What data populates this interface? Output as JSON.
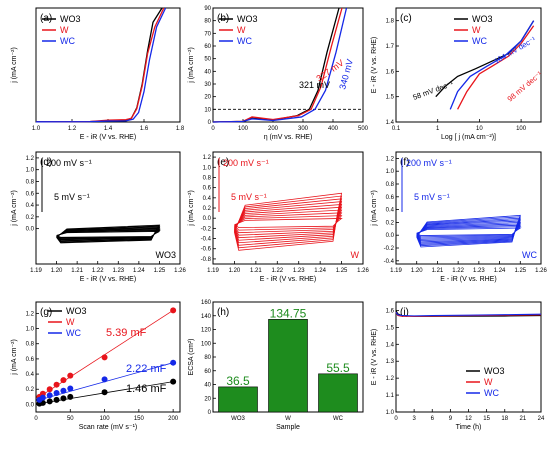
{
  "panels": {
    "a": {
      "tag": "(a)",
      "xlabel": "E - iR (V vs. RHE)",
      "ylabel": "j (mA cm⁻²)",
      "xticks": [
        "1.0",
        "1.2",
        "1.4",
        "1.6",
        "1.8"
      ],
      "yticks": []
    },
    "b": {
      "tag": "(b)",
      "xlabel": "η (mV vs. RHE)",
      "ylabel": "j (mA cm⁻²)",
      "xticks": [
        "0",
        "100",
        "200",
        "300",
        "400",
        "500"
      ],
      "yticks": [
        "0",
        "10",
        "20",
        "30",
        "40",
        "50",
        "60",
        "70",
        "80",
        "90"
      ],
      "annotations": [
        "321 mV",
        "327 mV",
        "340 mV"
      ]
    },
    "c": {
      "tag": "(c)",
      "xlabel": "Log [ j (mA cm⁻²)]",
      "ylabel": "E - iR (V vs. RHE)",
      "xticks": [
        "0.1",
        "1",
        "10",
        "100"
      ],
      "yticks": [
        "1.4",
        "1.5",
        "1.6",
        "1.7",
        "1.8"
      ],
      "annotations": [
        "58 mV dec⁻¹",
        "104 mV dec⁻¹",
        "98 mV dec⁻¹"
      ]
    },
    "d": {
      "tag": "(d)",
      "label": "WO3",
      "ylabel": "j (mA cm⁻²)",
      "xlabel": "E - iR (V vs. RHE)",
      "xticks": [
        "1.19",
        "1.20",
        "1.21",
        "1.22",
        "1.23",
        "1.24",
        "1.25",
        "1.26"
      ],
      "yticks": [
        "0.0",
        "0.2",
        "0.4",
        "0.6",
        "0.8",
        "1.0",
        "1.2"
      ],
      "note_top": "200 mV s⁻¹",
      "note_bottom": "5 mV s⁻¹"
    },
    "e": {
      "tag": "(e)",
      "label": "W",
      "xlabel": "E - iR (V vs. RHE)",
      "ylabel": "j (mA cm⁻²)",
      "xticks": [
        "1.19",
        "1.20",
        "1.21",
        "1.22",
        "1.23",
        "1.24",
        "1.25",
        "1.26"
      ],
      "yticks": [
        "-0.8",
        "-0.6",
        "-0.4",
        "-0.2",
        "0.0",
        "0.2",
        "0.4",
        "0.6",
        "0.8",
        "1.0",
        "1.2"
      ],
      "note_top": "200 mV s⁻¹",
      "note_bottom": "5 mV s⁻¹"
    },
    "f": {
      "tag": "(f)",
      "label": "WC",
      "xlabel": "E - iR (V vs. RHE)",
      "ylabel": "j (mA cm⁻²)",
      "xticks": [
        "1.19",
        "1.20",
        "1.21",
        "1.22",
        "1.23",
        "1.24",
        "1.25",
        "1.26"
      ],
      "yticks": [
        "-0.4",
        "-0.2",
        "0.0",
        "0.2",
        "0.4",
        "0.6",
        "0.8",
        "1.0",
        "1.2"
      ],
      "note_top": "200 mV s⁻¹",
      "note_bottom": "5 mV s⁻¹"
    },
    "g": {
      "tag": "(g)",
      "xlabel": "Scan rate (mV s⁻¹)",
      "ylabel": "j (mA cm⁻²)",
      "xticks": [
        "0",
        "50",
        "100",
        "150",
        "200"
      ],
      "yticks": [
        "0.0",
        "0.2",
        "0.4",
        "0.6",
        "0.8",
        "1.0",
        "1.2"
      ],
      "annotations": [
        "5.39 mF",
        "2.22 mF",
        "1.46 mF"
      ]
    },
    "h": {
      "tag": "(h)",
      "xlabel": "Sample",
      "ylabel": "ECSA (cm²)",
      "yticks": [
        "0",
        "20",
        "40",
        "60",
        "80",
        "100",
        "120",
        "140",
        "160"
      ]
    },
    "i": {
      "tag": "(i)",
      "xlabel": "Time (h)",
      "ylabel": "E - iR (V vs. RHE)",
      "xticks": [
        "0",
        "3",
        "6",
        "9",
        "12",
        "15",
        "18",
        "21",
        "24"
      ],
      "yticks": [
        "1.0",
        "1.1",
        "1.2",
        "1.3",
        "1.4",
        "1.5",
        "1.6"
      ]
    }
  },
  "legend": [
    {
      "name": "WO3",
      "color": "#000000"
    },
    {
      "name": "W",
      "color": "#e8141b"
    },
    {
      "name": "WC",
      "color": "#1428e8"
    }
  ],
  "chart_data": [
    {
      "panel": "a",
      "type": "line",
      "xlim": [
        1.0,
        1.8
      ],
      "ylim": [
        0,
        120
      ],
      "series": [
        {
          "name": "WO3",
          "x": [
            1.0,
            1.3,
            1.4,
            1.5,
            1.53,
            1.56,
            1.59,
            1.62,
            1.65,
            1.7
          ],
          "y": [
            0.2,
            0.4,
            1.2,
            1.5,
            4,
            15,
            40,
            75,
            105,
            120
          ]
        },
        {
          "name": "W",
          "x": [
            1.0,
            1.3,
            1.4,
            1.5,
            1.53,
            1.56,
            1.59,
            1.62,
            1.66,
            1.71
          ],
          "y": [
            0.2,
            0.5,
            2,
            2.5,
            4,
            14,
            38,
            72,
            100,
            120
          ]
        },
        {
          "name": "WC",
          "x": [
            1.0,
            1.3,
            1.4,
            1.5,
            1.54,
            1.57,
            1.6,
            1.63,
            1.67,
            1.72
          ],
          "y": [
            0.2,
            0.4,
            1,
            1.2,
            3,
            10,
            32,
            65,
            100,
            120
          ]
        }
      ]
    },
    {
      "panel": "b",
      "type": "line",
      "xlim": [
        0,
        500
      ],
      "ylim": [
        0,
        90
      ],
      "hline": 10,
      "series": [
        {
          "name": "WO3",
          "x": [
            0,
            100,
            130,
            200,
            280,
            321,
            350,
            380,
            420
          ],
          "y": [
            0,
            0.5,
            3,
            1.5,
            5,
            10,
            25,
            55,
            90
          ]
        },
        {
          "name": "W",
          "x": [
            0,
            100,
            130,
            200,
            285,
            327,
            360,
            395,
            430
          ],
          "y": [
            0,
            0.5,
            4,
            2,
            5,
            10,
            28,
            60,
            90
          ]
        },
        {
          "name": "WC",
          "x": [
            0,
            100,
            130,
            200,
            295,
            340,
            375,
            410,
            445
          ],
          "y": [
            0,
            0.4,
            2.5,
            1.2,
            4,
            10,
            25,
            55,
            90
          ]
        }
      ],
      "annotations": [
        {
          "text": "321 mV",
          "x": 321,
          "y": 10
        },
        {
          "text": "327 mV",
          "x": 327,
          "y": 10
        },
        {
          "text": "340 mV",
          "x": 340,
          "y": 10
        }
      ]
    },
    {
      "panel": "c",
      "type": "line",
      "xscale": "log",
      "xlim": [
        0.1,
        300
      ],
      "ylim": [
        1.4,
        1.85
      ],
      "series": [
        {
          "name": "WO3",
          "x": [
            0.9,
            1.5,
            3,
            8,
            20,
            50,
            100,
            200
          ],
          "y": [
            1.5,
            1.54,
            1.58,
            1.61,
            1.64,
            1.67,
            1.72,
            1.8
          ]
        },
        {
          "name": "W",
          "x": [
            3,
            5,
            10,
            20,
            50,
            100,
            200
          ],
          "y": [
            1.45,
            1.52,
            1.59,
            1.62,
            1.66,
            1.71,
            1.78
          ]
        },
        {
          "name": "WC",
          "x": [
            2,
            3,
            6,
            15,
            40,
            100,
            200
          ],
          "y": [
            1.45,
            1.52,
            1.58,
            1.62,
            1.66,
            1.72,
            1.8
          ]
        }
      ],
      "annotations": [
        {
          "text": "58 mV dec⁻¹",
          "x": 0.4,
          "y": 1.53
        },
        {
          "text": "104 mV dec⁻¹",
          "x": 30,
          "y": 1.72
        },
        {
          "text": "98 mV dec⁻¹",
          "x": 40,
          "y": 1.56
        }
      ]
    },
    {
      "panel": "g",
      "type": "scatter",
      "xlim": [
        0,
        210
      ],
      "ylim": [
        -0.1,
        1.35
      ],
      "series": [
        {
          "name": "WO3",
          "x": [
            5,
            10,
            20,
            30,
            40,
            50,
            100,
            200
          ],
          "y": [
            0.01,
            0.02,
            0.04,
            0.06,
            0.08,
            0.1,
            0.16,
            0.3
          ]
        },
        {
          "name": "W",
          "x": [
            5,
            10,
            20,
            30,
            40,
            50,
            100,
            200
          ],
          "y": [
            0.1,
            0.14,
            0.2,
            0.26,
            0.32,
            0.38,
            0.62,
            1.24
          ]
        },
        {
          "name": "WC",
          "x": [
            5,
            10,
            20,
            30,
            40,
            50,
            100,
            200
          ],
          "y": [
            0.06,
            0.09,
            0.12,
            0.15,
            0.18,
            0.21,
            0.33,
            0.55
          ]
        }
      ]
    },
    {
      "panel": "h",
      "type": "bar",
      "ylim": [
        0,
        160
      ],
      "categories": [
        "WO3",
        "W",
        "WC"
      ],
      "values": [
        36.5,
        134.75,
        55.5
      ],
      "labels": [
        "36.5",
        "134.75",
        "55.5"
      ],
      "color": "#1e8c1e"
    },
    {
      "panel": "i",
      "type": "line",
      "xlim": [
        0,
        24
      ],
      "ylim": [
        1.0,
        1.65
      ],
      "series": [
        {
          "name": "WO3",
          "x": [
            0,
            0.3,
            1,
            3,
            6,
            12,
            18,
            24
          ],
          "y": [
            1.6,
            1.58,
            1.57,
            1.565,
            1.565,
            1.566,
            1.567,
            1.57
          ]
        },
        {
          "name": "W",
          "x": [
            0,
            0.3,
            1,
            3,
            6,
            12,
            18,
            24
          ],
          "y": [
            1.59,
            1.57,
            1.565,
            1.565,
            1.567,
            1.57,
            1.572,
            1.574
          ]
        },
        {
          "name": "WC",
          "x": [
            0,
            0.3,
            1,
            3,
            6,
            12,
            18,
            24
          ],
          "y": [
            1.59,
            1.575,
            1.57,
            1.568,
            1.57,
            1.572,
            1.575,
            1.578
          ]
        }
      ]
    }
  ]
}
